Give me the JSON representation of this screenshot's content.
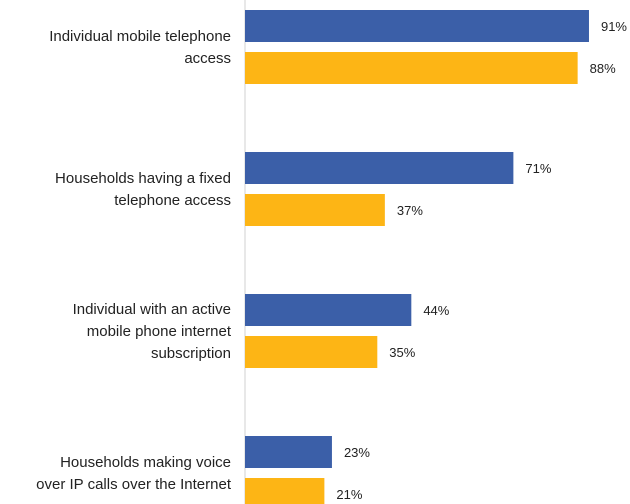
{
  "chart_data": {
    "type": "bar",
    "orientation": "horizontal",
    "categories": [
      [
        "Individual mobile telephone",
        "access"
      ],
      [
        "Households having a fixed",
        "telephone access"
      ],
      [
        "Individual with an active",
        "mobile phone internet",
        "subscription"
      ],
      [
        "Households making voice",
        "over IP calls over the Internet"
      ]
    ],
    "series": [
      {
        "values": [
          91,
          71,
          44,
          23
        ],
        "color": "#3b5fa8"
      },
      {
        "values": [
          88,
          37,
          35,
          21
        ],
        "color": "#fdb515"
      }
    ],
    "value_suffix": "%",
    "xlim": [
      0,
      100
    ],
    "legend": "none",
    "grid": false
  }
}
